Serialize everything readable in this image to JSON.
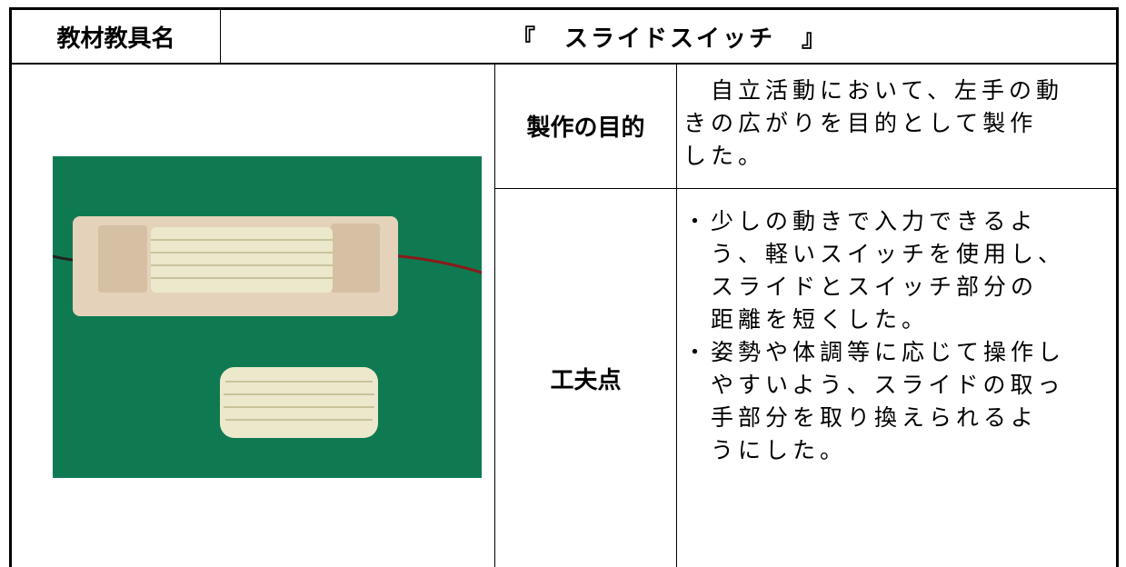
{
  "header": {
    "label": "教材教具名",
    "title": "『　スライドスイッチ　』"
  },
  "purpose": {
    "label": "製作の目的",
    "lines": [
      "　自立活動において、左手の動",
      "きの広がりを目的として製作",
      "した。"
    ]
  },
  "points": {
    "label": "工夫点",
    "items": [
      {
        "lines": [
          "・少しの動きで入力できるよ",
          "　う、軽いスイッチを使用し、",
          "　スライドとスイッチ部分の",
          "　距離を短くした。"
        ]
      },
      {
        "lines": [
          "・姿勢や体調等に応じて操作し",
          "　やすいよう、スライドの取っ",
          "　手部分を取り換えられるよ",
          "　うにした。"
        ]
      }
    ]
  }
}
